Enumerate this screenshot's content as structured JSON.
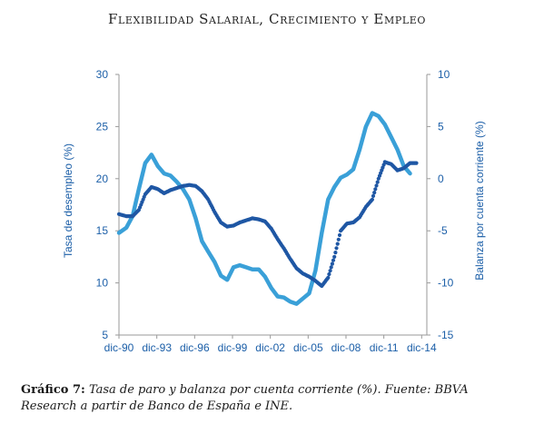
{
  "header": {
    "title": "Flexibilidad Salarial, Crecimiento y Empleo"
  },
  "caption": {
    "label": "Gráfico 7:",
    "text": "Tasa de paro y balanza por cuenta corriente (%). Fuente: BBVA Research a partir de Banco de España e INE."
  },
  "colors": {
    "unemployment": "#1f57a4",
    "current_account": "#3aa0d8",
    "axis_text": "#1c5fa8"
  },
  "chart_data": {
    "type": "line",
    "x_tick_labels": [
      "dic-90",
      "dic-93",
      "dic-96",
      "dic-99",
      "dic-02",
      "dic-05",
      "dic-08",
      "dic-11",
      "dic-14"
    ],
    "x_range": [
      1990.92,
      2015.33
    ],
    "y_left": {
      "label": "Tasa de desempleo (%)",
      "range": [
        5,
        30
      ],
      "ticks": [
        5,
        10,
        15,
        20,
        25,
        30
      ]
    },
    "y_right": {
      "label": "Balanza por cuenta corriente (%)",
      "range": [
        -15,
        10
      ],
      "ticks": [
        -15,
        -10,
        -5,
        0,
        5,
        10
      ]
    },
    "grid": false,
    "series": [
      {
        "style": "dotted",
        "axis": "left",
        "points": [
          [
            1990.92,
            16.6
          ],
          [
            1991.5,
            16.4
          ],
          [
            1992.0,
            16.4
          ],
          [
            1992.5,
            17.0
          ],
          [
            1993.0,
            18.5
          ],
          [
            1993.5,
            19.2
          ],
          [
            1994.0,
            19.0
          ],
          [
            1994.5,
            18.6
          ],
          [
            1995.0,
            18.9
          ],
          [
            1995.5,
            19.1
          ],
          [
            1996.0,
            19.3
          ],
          [
            1996.5,
            19.4
          ],
          [
            1997.0,
            19.3
          ],
          [
            1997.5,
            18.8
          ],
          [
            1998.0,
            18.0
          ],
          [
            1998.5,
            16.8
          ],
          [
            1999.0,
            15.8
          ],
          [
            1999.5,
            15.4
          ],
          [
            2000.0,
            15.5
          ],
          [
            2000.5,
            15.8
          ],
          [
            2001.0,
            16.0
          ],
          [
            2001.5,
            16.2
          ],
          [
            2002.0,
            16.1
          ],
          [
            2002.5,
            15.9
          ],
          [
            2003.0,
            15.2
          ],
          [
            2003.5,
            14.2
          ],
          [
            2004.0,
            13.3
          ],
          [
            2004.5,
            12.3
          ],
          [
            2005.0,
            11.4
          ],
          [
            2005.5,
            10.9
          ],
          [
            2006.0,
            10.6
          ],
          [
            2006.5,
            10.2
          ],
          [
            2007.0,
            9.7
          ],
          [
            2007.5,
            10.5
          ],
          [
            2008.0,
            12.5
          ],
          [
            2008.5,
            15.0
          ],
          [
            2009.0,
            15.7
          ],
          [
            2009.5,
            15.8
          ],
          [
            2010.0,
            16.3
          ],
          [
            2010.5,
            17.3
          ],
          [
            2011.0,
            18.0
          ],
          [
            2011.5,
            20.0
          ],
          [
            2012.0,
            21.6
          ],
          [
            2012.5,
            21.4
          ],
          [
            2013.0,
            20.8
          ],
          [
            2013.5,
            21.0
          ],
          [
            2014.0,
            21.5
          ],
          [
            2014.5,
            21.5
          ]
        ]
      },
      {
        "style": "solid",
        "axis": "right",
        "points": [
          [
            1990.92,
            -5.2
          ],
          [
            1991.5,
            -4.7
          ],
          [
            1992.0,
            -3.6
          ],
          [
            1992.5,
            -1.0
          ],
          [
            1993.0,
            1.5
          ],
          [
            1993.5,
            2.3
          ],
          [
            1994.0,
            1.2
          ],
          [
            1994.5,
            0.5
          ],
          [
            1995.0,
            0.3
          ],
          [
            1995.5,
            -0.3
          ],
          [
            1996.0,
            -1.0
          ],
          [
            1996.5,
            -2.0
          ],
          [
            1997.0,
            -3.8
          ],
          [
            1997.5,
            -6.0
          ],
          [
            1998.0,
            -7.0
          ],
          [
            1998.5,
            -8.0
          ],
          [
            1999.0,
            -9.3
          ],
          [
            1999.5,
            -9.7
          ],
          [
            2000.0,
            -8.5
          ],
          [
            2000.5,
            -8.3
          ],
          [
            2001.0,
            -8.5
          ],
          [
            2001.5,
            -8.7
          ],
          [
            2002.0,
            -8.7
          ],
          [
            2002.5,
            -9.4
          ],
          [
            2003.0,
            -10.5
          ],
          [
            2003.5,
            -11.3
          ],
          [
            2004.0,
            -11.4
          ],
          [
            2004.5,
            -11.8
          ],
          [
            2005.0,
            -12.0
          ],
          [
            2005.5,
            -11.5
          ],
          [
            2006.0,
            -11.0
          ],
          [
            2006.5,
            -8.8
          ],
          [
            2007.0,
            -5.2
          ],
          [
            2007.5,
            -2.0
          ],
          [
            2008.0,
            -0.8
          ],
          [
            2008.5,
            0.1
          ],
          [
            2009.0,
            0.4
          ],
          [
            2009.5,
            0.9
          ],
          [
            2010.0,
            2.8
          ],
          [
            2010.5,
            5.0
          ],
          [
            2011.0,
            6.3
          ],
          [
            2011.5,
            6.0
          ],
          [
            2012.0,
            5.2
          ],
          [
            2012.5,
            4.0
          ],
          [
            2013.0,
            2.8
          ],
          [
            2013.5,
            1.2
          ],
          [
            2014.0,
            0.5
          ]
        ]
      }
    ]
  }
}
